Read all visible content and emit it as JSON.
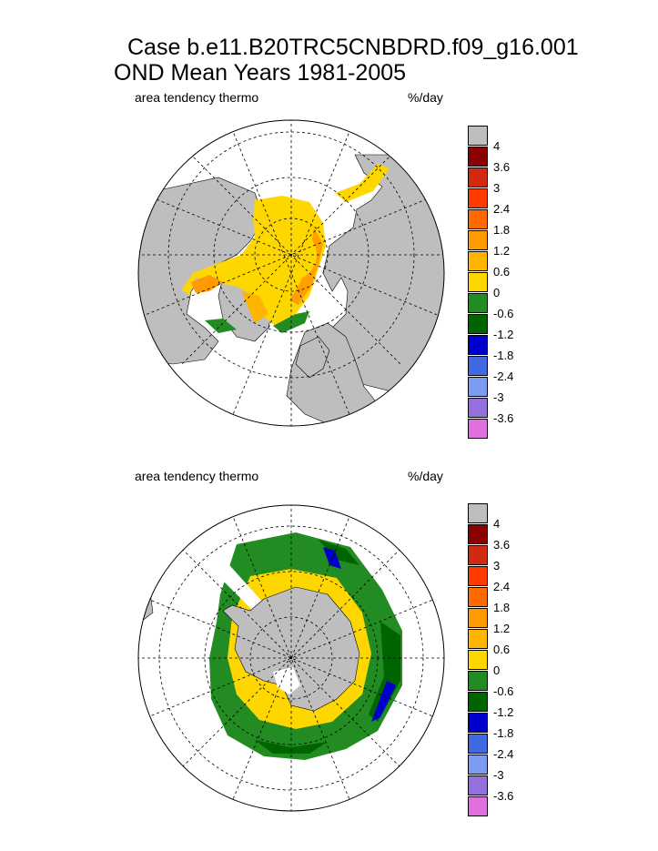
{
  "title": {
    "line1": "Case b.e11.B20TRC5CNBDRD.f09_g16.001",
    "line2": "OND Mean   Years 1981-2005"
  },
  "colors": {
    "land": "#bebebe",
    "missing": "#ffffff",
    "bins": [
      "#8b0000",
      "#d12a10",
      "#ff3a00",
      "#ff6a00",
      "#ff9a00",
      "#ffb400",
      "#ffd700",
      "#228b22",
      "#006400",
      "#0000cd",
      "#4169e1",
      "#7b9cf0",
      "#9370db",
      "#e070e0"
    ]
  },
  "panels": [
    {
      "name": "north",
      "variable_label": "area tendency thermo",
      "units_label": "%/day",
      "colorbar_labels": [
        "4",
        "3.6",
        "3",
        "2.4",
        "1.8",
        "1.2",
        "0.6",
        "0",
        "-0.6",
        "-1.2",
        "-1.8",
        "-2.4",
        "-3",
        "-3.6"
      ]
    },
    {
      "name": "south",
      "variable_label": "area tendency thermo",
      "units_label": "%/day",
      "colorbar_labels": [
        "4",
        "3.6",
        "3",
        "2.4",
        "1.8",
        "1.2",
        "0.6",
        "0",
        "-0.6",
        "-1.2",
        "-1.8",
        "-2.4",
        "-3",
        "-3.6"
      ]
    }
  ]
}
